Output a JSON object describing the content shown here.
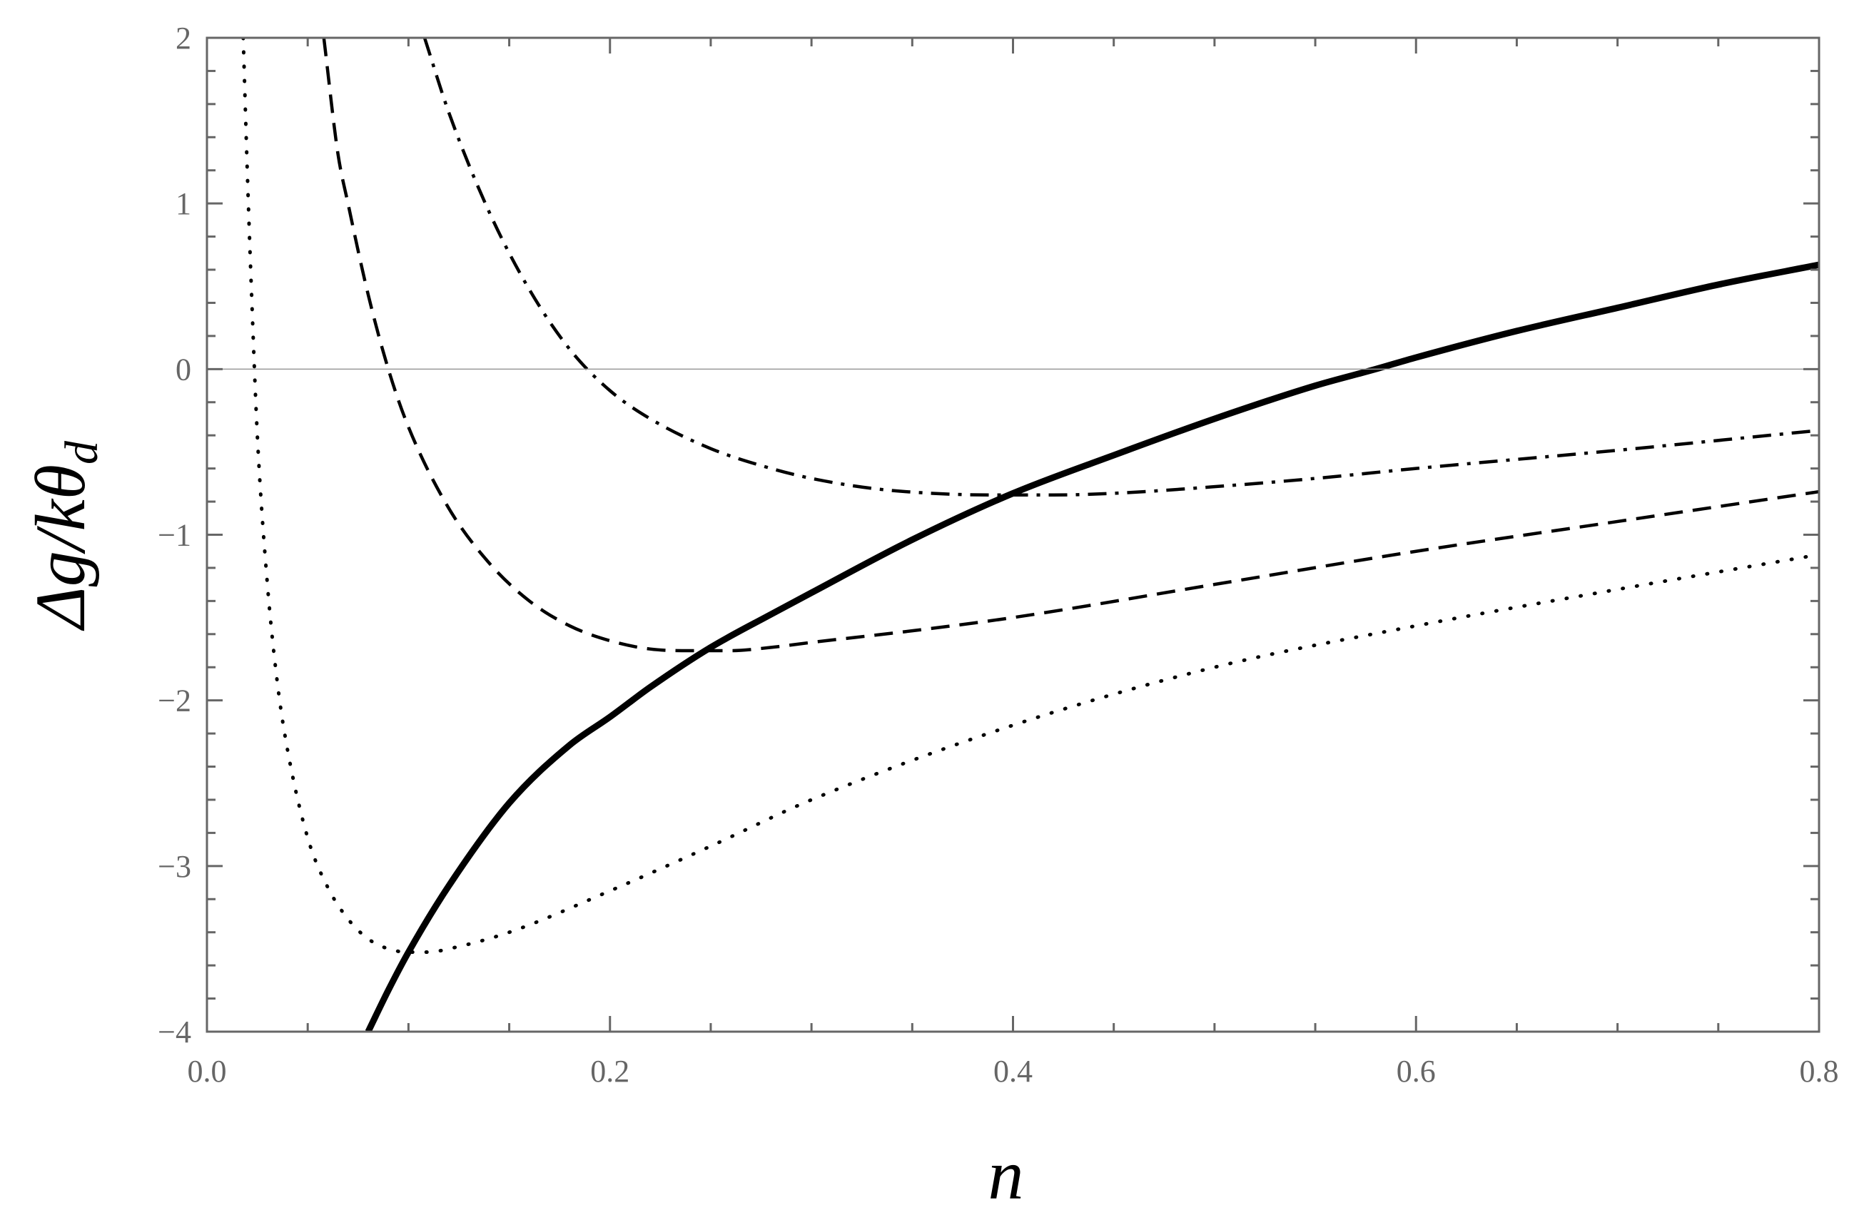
{
  "chart_data": {
    "type": "line",
    "xlabel": "n",
    "ylabel": "Δg/kθ_d",
    "ylabel_parts": {
      "main": "Δg/kθ",
      "sub": "d"
    },
    "xlim": [
      0.0,
      0.8
    ],
    "ylim": [
      -4,
      2
    ],
    "x_ticks": [
      "0.0",
      "0.2",
      "0.4",
      "0.6",
      "0.8"
    ],
    "y_ticks": [
      "−4",
      "−3",
      "−2",
      "−1",
      "0",
      "1",
      "2"
    ],
    "grid": false,
    "zero_line": true,
    "series": [
      {
        "style": "solid",
        "x": [
          0.08,
          0.09,
          0.1,
          0.12,
          0.15,
          0.18,
          0.2,
          0.22,
          0.25,
          0.28,
          0.3,
          0.35,
          0.4,
          0.45,
          0.5,
          0.55,
          0.58,
          0.6,
          0.65,
          0.7,
          0.75,
          0.8
        ],
        "y": [
          -4.0,
          -3.75,
          -3.52,
          -3.12,
          -2.62,
          -2.27,
          -2.1,
          -1.92,
          -1.68,
          -1.48,
          -1.35,
          -1.03,
          -0.75,
          -0.52,
          -0.3,
          -0.1,
          0.0,
          0.07,
          0.23,
          0.37,
          0.51,
          0.63
        ]
      },
      {
        "style": "dashed",
        "x": [
          0.058,
          0.065,
          0.07,
          0.08,
          0.09,
          0.1,
          0.12,
          0.14,
          0.16,
          0.18,
          0.2,
          0.22,
          0.24,
          0.26,
          0.28,
          0.3,
          0.35,
          0.4,
          0.5,
          0.6,
          0.7,
          0.8
        ],
        "y": [
          2.0,
          1.3,
          1.0,
          0.45,
          0.0,
          -0.35,
          -0.84,
          -1.17,
          -1.4,
          -1.55,
          -1.64,
          -1.69,
          -1.7,
          -1.7,
          -1.68,
          -1.65,
          -1.58,
          -1.5,
          -1.3,
          -1.1,
          -0.92,
          -0.74
        ]
      },
      {
        "style": "dash-dot",
        "x": [
          0.108,
          0.12,
          0.14,
          0.16,
          0.18,
          0.2,
          0.22,
          0.25,
          0.28,
          0.3,
          0.33,
          0.36,
          0.39,
          0.42,
          0.45,
          0.5,
          0.55,
          0.6,
          0.7,
          0.8
        ],
        "y": [
          2.0,
          1.55,
          0.95,
          0.48,
          0.12,
          -0.13,
          -0.3,
          -0.48,
          -0.6,
          -0.66,
          -0.72,
          -0.75,
          -0.76,
          -0.76,
          -0.75,
          -0.71,
          -0.66,
          -0.6,
          -0.49,
          -0.37
        ]
      },
      {
        "style": "dotted",
        "x": [
          0.018,
          0.02,
          0.022,
          0.025,
          0.03,
          0.035,
          0.04,
          0.05,
          0.06,
          0.07,
          0.08,
          0.09,
          0.1,
          0.11,
          0.12,
          0.15,
          0.2,
          0.25,
          0.3,
          0.4,
          0.5,
          0.6,
          0.7,
          0.8
        ],
        "y": [
          2.0,
          1.2,
          0.5,
          -0.4,
          -1.3,
          -1.9,
          -2.3,
          -2.83,
          -3.13,
          -3.32,
          -3.44,
          -3.5,
          -3.52,
          -3.52,
          -3.5,
          -3.4,
          -3.15,
          -2.88,
          -2.6,
          -2.15,
          -1.8,
          -1.55,
          -1.33,
          -1.12
        ]
      }
    ]
  }
}
